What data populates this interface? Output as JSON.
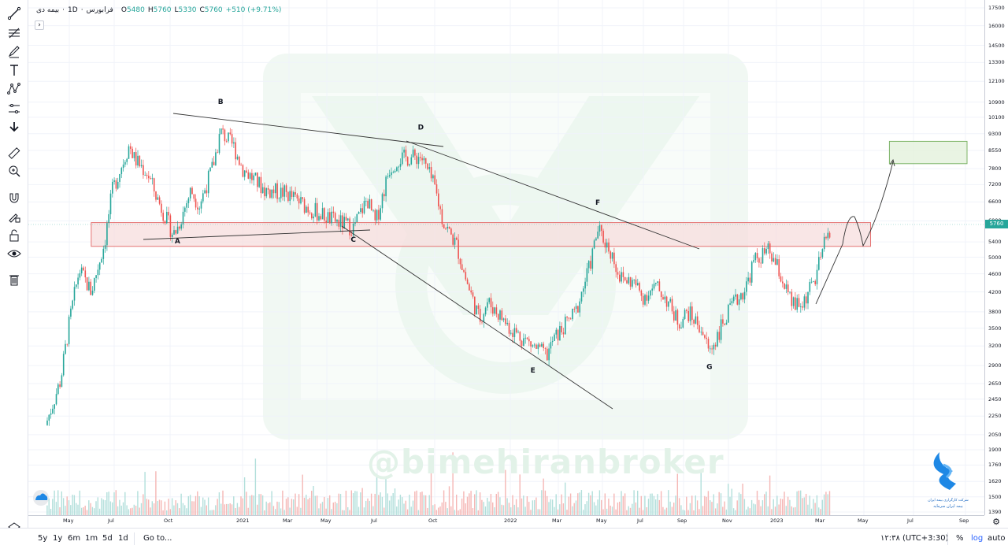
{
  "legend": {
    "symbol": "بیمه دی",
    "interval": "1D",
    "exchange": "فرابورس",
    "open_label": "O",
    "open_value": "5480",
    "high_label": "H",
    "high_value": "5760",
    "low_label": "L",
    "low_value": "5330",
    "close_label": "C",
    "close_value": "5760",
    "change": "+510 (+9.71%)"
  },
  "current_price_label": "5760",
  "watermark": "@bimehiranbroker",
  "logo": {
    "line1": "شرکت کارگزاری بیمه ایران",
    "line2": "بیمه ایران سرمایه"
  },
  "bottom_bar": {
    "ranges": [
      "5y",
      "1y",
      "6m",
      "1m",
      "5d",
      "1d"
    ],
    "goto": "Go to...",
    "clock": "۱۲:۳۸ (UTC+3:30)",
    "percent": "%",
    "log": "log",
    "auto": "auto"
  },
  "colors": {
    "up": "#26a69a",
    "down": "#ef5350",
    "zone_border": "#e57373",
    "zone_fill": "#f7dcdc",
    "target_fill": "#e3f1dc",
    "target_border": "#7cb366",
    "line": "#131722"
  },
  "icons": [
    "trend-line-icon",
    "fib-icon",
    "brush-icon",
    "text-icon",
    "pattern-icon",
    "prediction-icon",
    "arrow-down-icon",
    "ruler-icon",
    "zoom-icon",
    "magnet-icon",
    "lock-drawing-icon",
    "lock-icon",
    "eye-icon",
    "trash-icon",
    "layers-icon"
  ],
  "chart_data": {
    "type": "candlestick",
    "y_scale": "log",
    "ylim": [
      1390,
      17500
    ],
    "price_ticks": [
      "17500",
      "16000",
      "14500",
      "13300",
      "12100",
      "10900",
      "10100",
      "9300",
      "8550",
      "7800",
      "7200",
      "6600",
      "6000",
      "5400",
      "5000",
      "4600",
      "4200",
      "3800",
      "3500",
      "3200",
      "2900",
      "2650",
      "2450",
      "2250",
      "2050",
      "1900",
      "1760",
      "1620",
      "1500",
      "1390"
    ],
    "time_ticks": [
      "May",
      "Jul",
      "Oct",
      "2021",
      "Mar",
      "May",
      "Jul",
      "Oct",
      "2022",
      "Mar",
      "May",
      "Jul",
      "Sep",
      "Nov",
      "2023",
      "Mar",
      "May",
      "Jul",
      "Sep"
    ],
    "close_path": [
      [
        "2020-04",
        2150
      ],
      [
        "2020-04-20",
        2700
      ],
      [
        "2020-05",
        3600
      ],
      [
        "2020-05-15",
        4700
      ],
      [
        "2020-06",
        4200
      ],
      [
        "2020-06-20",
        5400
      ],
      [
        "2020-07",
        7000
      ],
      [
        "2020-07-25",
        8800
      ],
      [
        "2020-08",
        8200
      ],
      [
        "2020-08-20",
        7600
      ],
      [
        "2020-09",
        6800
      ],
      [
        "2020-09-25",
        5600
      ],
      [
        "2020-10",
        5800
      ],
      [
        "2020-10-20",
        7000
      ],
      [
        "2020-11",
        6500
      ],
      [
        "2020-11-20",
        7900
      ],
      [
        "2020-12",
        9400
      ],
      [
        "2020-12-20",
        8700
      ],
      [
        "2021-01",
        7800
      ],
      [
        "2021-01-20",
        7300
      ],
      [
        "2021-02",
        7000
      ],
      [
        "2021-03",
        6900
      ],
      [
        "2021-04",
        6400
      ],
      [
        "2021-05",
        6050
      ],
      [
        "2021-06",
        5800
      ],
      [
        "2021-06-20",
        6700
      ],
      [
        "2021-07",
        5900
      ],
      [
        "2021-07-20",
        7800
      ],
      [
        "2021-08",
        8200
      ],
      [
        "2021-09",
        8300
      ],
      [
        "2021-09-20",
        7100
      ],
      [
        "2021-10",
        6000
      ],
      [
        "2021-10-20",
        5300
      ],
      [
        "2021-11",
        4500
      ],
      [
        "2021-11-20",
        3650
      ],
      [
        "2021-12",
        4000
      ],
      [
        "2021-12-20",
        3700
      ],
      [
        "2022-01",
        3500
      ],
      [
        "2022-02",
        3200
      ],
      [
        "2022-02-20",
        3050
      ],
      [
        "2022-03",
        3300
      ],
      [
        "2022-04",
        3800
      ],
      [
        "2022-04-20",
        4800
      ],
      [
        "2022-05",
        5750
      ],
      [
        "2022-05-20",
        5100
      ],
      [
        "2022-06",
        4500
      ],
      [
        "2022-06-20",
        4400
      ],
      [
        "2022-07",
        4100
      ],
      [
        "2022-07-20",
        4300
      ],
      [
        "2022-08",
        4100
      ],
      [
        "2022-08-20",
        3600
      ],
      [
        "2022-09",
        3800
      ],
      [
        "2022-09-20",
        3500
      ],
      [
        "2022-10",
        3100
      ],
      [
        "2022-10-20",
        3600
      ],
      [
        "2022-11",
        3900
      ],
      [
        "2022-11-20",
        4300
      ],
      [
        "2022-12",
        4900
      ],
      [
        "2022-12-20",
        5150
      ],
      [
        "2023-01",
        4800
      ],
      [
        "2023-01-20",
        3950
      ],
      [
        "2023-02",
        3900
      ],
      [
        "2023-02-20",
        4500
      ],
      [
        "2023-03",
        5200
      ],
      [
        "2023-03-10",
        5760
      ]
    ],
    "annotations": [
      {
        "label": "A",
        "date": "2020-10",
        "price": 5360
      },
      {
        "label": "B",
        "date": "2020-12",
        "price": 10800
      },
      {
        "label": "C",
        "date": "2021-06",
        "price": 5400
      },
      {
        "label": "D",
        "date": "2021-09",
        "price": 9500
      },
      {
        "label": "E",
        "date": "2022-02",
        "price": 2800
      },
      {
        "label": "F",
        "date": "2022-05",
        "price": 6500
      },
      {
        "label": "G",
        "date": "2022-10",
        "price": 2850
      }
    ],
    "zones": [
      {
        "name": "resistance-zone",
        "from": "2020-06",
        "to": "2023-05",
        "price_low": 5280,
        "price_high": 5950
      },
      {
        "name": "target-zone",
        "from": "2023-05-25",
        "to": "2023-09",
        "price_low": 8000,
        "price_high": 8950
      }
    ]
  }
}
